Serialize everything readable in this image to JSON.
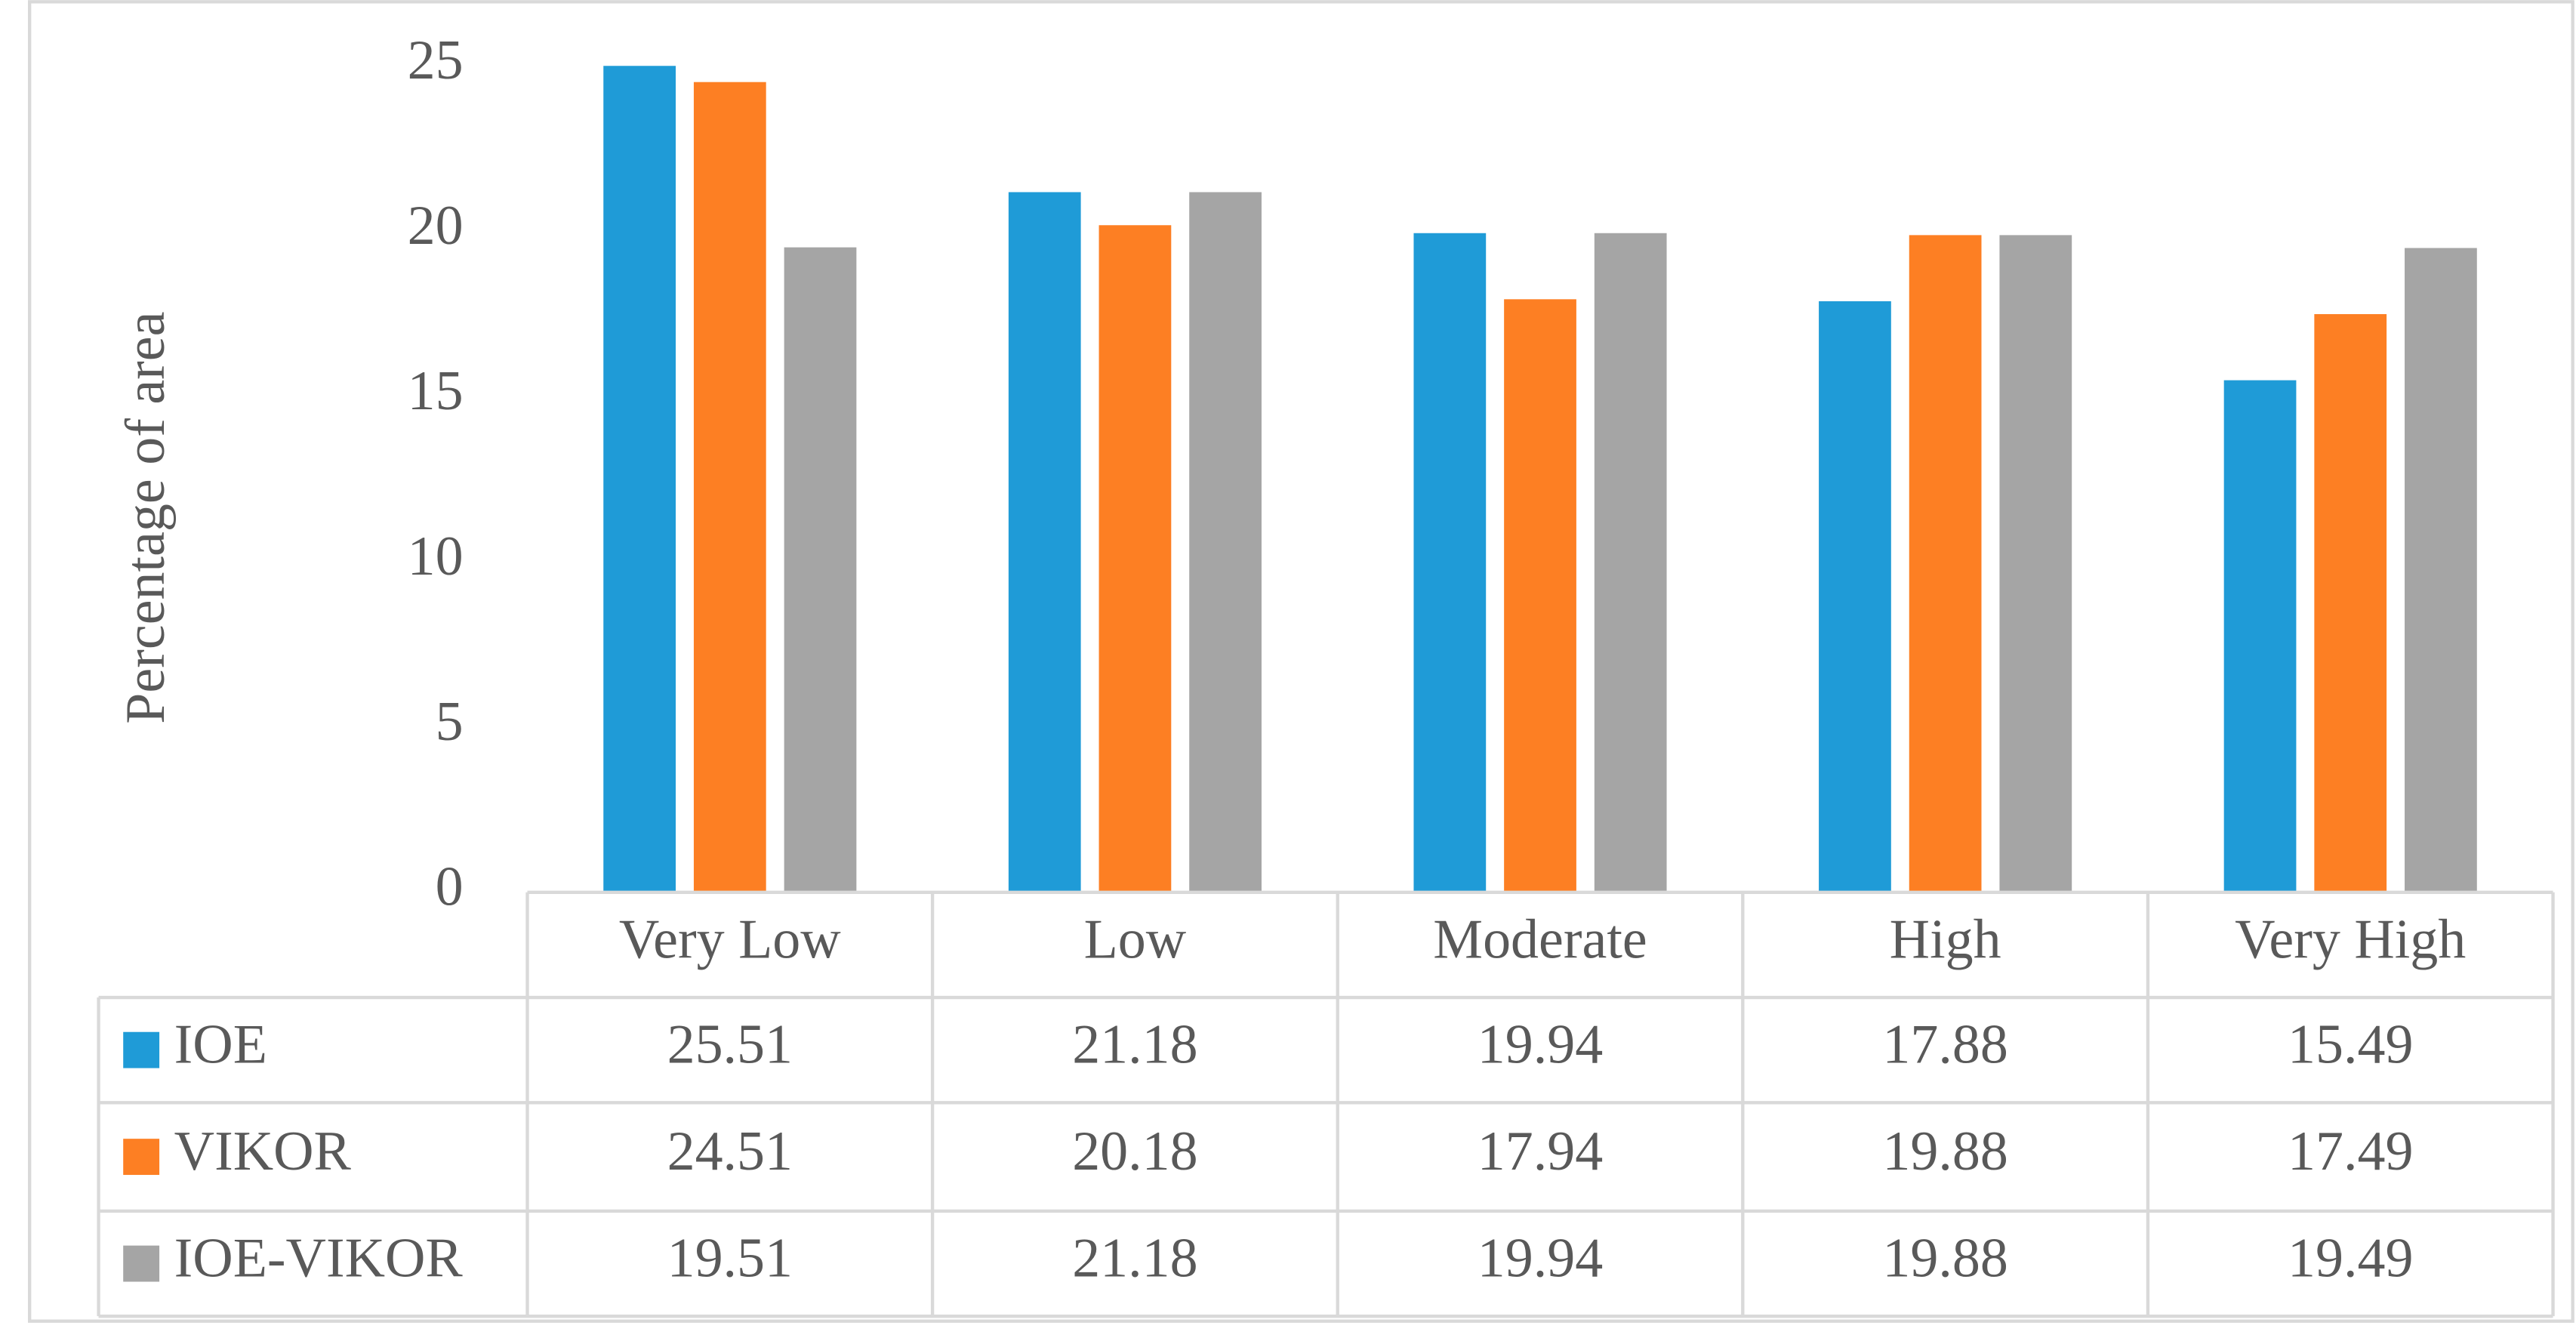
{
  "chart_data": {
    "type": "bar",
    "y_label": "Percentage of area",
    "categories": [
      "Very Low",
      "Low",
      "Moderate",
      "High",
      "Very High"
    ],
    "series": [
      {
        "name": "IOE",
        "color": "#1f9bd7",
        "values": [
          25.51,
          21.18,
          19.94,
          17.88,
          15.49
        ]
      },
      {
        "name": "VIKOR",
        "color": "#fd7f23",
        "values": [
          24.51,
          20.18,
          17.94,
          19.88,
          17.49
        ]
      },
      {
        "name": "IOE-VIKOR",
        "color": "#a5a5a5",
        "values": [
          19.51,
          21.18,
          19.94,
          19.88,
          19.49
        ]
      }
    ],
    "ylim": [
      0,
      25
    ],
    "yticks": [
      0,
      5,
      10,
      15,
      20,
      25
    ],
    "grid": false,
    "data_table": true
  }
}
